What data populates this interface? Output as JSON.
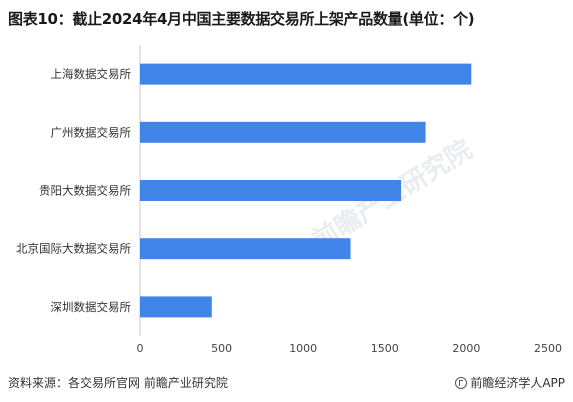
{
  "title": "图表10：截止2024年4月中国主要数据交易所上架产品数量(单位：个)",
  "footer": {
    "source": "资料来源：各交易所官网 前瞻产业研究院",
    "brand": "前瞻经济学人APP"
  },
  "watermark": {
    "text": "前瞻产业研究院"
  },
  "colors": {
    "bar": "#4285e9"
  },
  "chart_data": {
    "type": "bar",
    "orientation": "horizontal",
    "categories": [
      "上海数据交易所",
      "广州数据交易所",
      "贵阳大数据交易所",
      "北京国际大数据交易所",
      "深圳数据交易所"
    ],
    "values": [
      2030,
      1750,
      1600,
      1290,
      440
    ],
    "xlim": [
      0,
      2500
    ],
    "xticks": [
      "0",
      "500",
      "1000",
      "1500",
      "2000",
      "2500"
    ],
    "grid": false,
    "legend": "none"
  }
}
